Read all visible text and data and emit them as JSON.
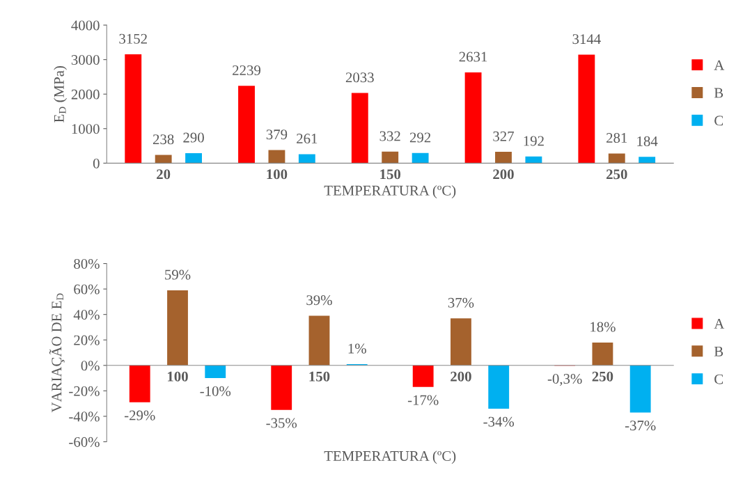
{
  "chart_data": [
    {
      "type": "bar",
      "xlabel": "TEMPERATURA (ºC)",
      "ylabel": "E$_{D}$ (MPa)",
      "categories": [
        "20",
        "100",
        "150",
        "200",
        "250"
      ],
      "series": [
        {
          "name": "A",
          "color": "#ff0000",
          "values": [
            3152,
            2239,
            2033,
            2631,
            3144
          ]
        },
        {
          "name": "B",
          "color": "#a5622d",
          "values": [
            238,
            379,
            332,
            327,
            281
          ]
        },
        {
          "name": "C",
          "color": "#00b0f0",
          "values": [
            290,
            261,
            292,
            192,
            184
          ]
        }
      ],
      "ylim": [
        0,
        4000
      ],
      "yticks": [
        0,
        1000,
        2000,
        3000,
        4000
      ],
      "data_labels": true,
      "legend": "right",
      "grid": false
    },
    {
      "type": "bar",
      "xlabel": "TEMPERATURA (ºC)",
      "ylabel": "VARIAÇÃO DE E$_{D}$",
      "categories": [
        "100",
        "150",
        "200",
        "250"
      ],
      "series": [
        {
          "name": "A",
          "color": "#ff0000",
          "values": [
            -29,
            -35,
            -17,
            -0.3
          ],
          "value_labels": [
            "-29%",
            "-35%",
            "-17%",
            "-0,3%"
          ]
        },
        {
          "name": "B",
          "color": "#a5622d",
          "values": [
            59,
            39,
            37,
            18
          ],
          "value_labels": [
            "59%",
            "39%",
            "37%",
            "18%"
          ]
        },
        {
          "name": "C",
          "color": "#00b0f0",
          "values": [
            -10,
            1,
            -34,
            -37
          ],
          "value_labels": [
            "-10%",
            "1%",
            "-34%",
            "-37%"
          ]
        }
      ],
      "ylim": [
        -60,
        80
      ],
      "yticks": [
        {
          "value": -60,
          "label": "-60%"
        },
        {
          "value": -40,
          "label": "-40%"
        },
        {
          "value": -20,
          "label": "-20%"
        },
        {
          "value": 0,
          "label": "0%"
        },
        {
          "value": 20,
          "label": "20%"
        },
        {
          "value": 40,
          "label": "40%"
        },
        {
          "value": 60,
          "label": "60%"
        },
        {
          "value": 80,
          "label": "80%"
        }
      ],
      "legend": "right",
      "grid": false
    }
  ]
}
